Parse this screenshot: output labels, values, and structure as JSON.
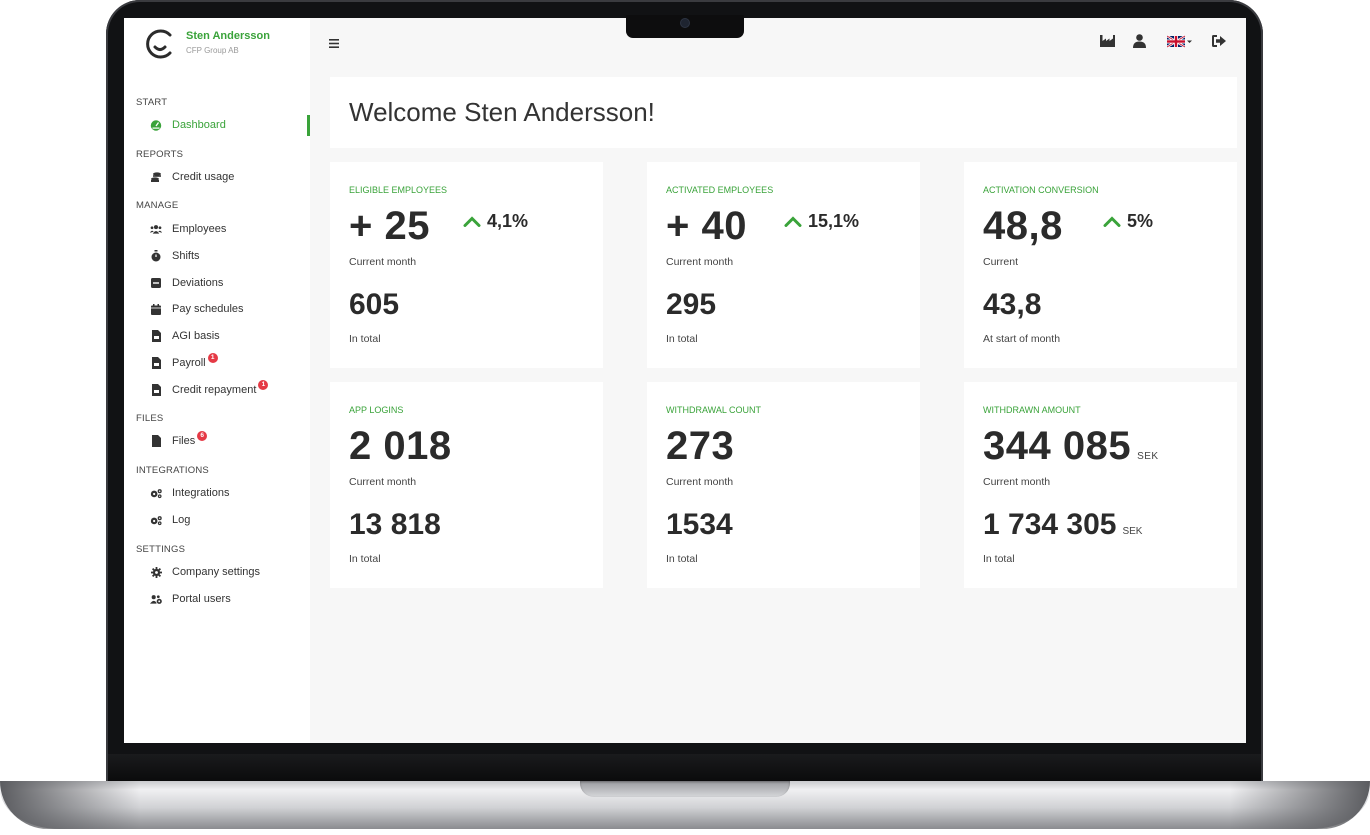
{
  "brand": {
    "name": "Sten Andersson",
    "company": "CFP Group AB",
    "accent": "#3aa33a"
  },
  "sidebar": {
    "sections": {
      "start": "START",
      "reports": "REPORTS",
      "manage": "MANAGE",
      "files": "FILES",
      "integrations": "INTEGRATIONS",
      "settings": "SETTINGS"
    },
    "items": {
      "dashboard": {
        "label": "Dashboard",
        "icon": "dashboard-icon"
      },
      "credit_usage": {
        "label": "Credit usage",
        "icon": "coins-icon"
      },
      "employees": {
        "label": "Employees",
        "icon": "users-icon"
      },
      "shifts": {
        "label": "Shifts",
        "icon": "stopwatch-icon"
      },
      "deviations": {
        "label": "Deviations",
        "icon": "minus-square-icon"
      },
      "pay_schedules": {
        "label": "Pay schedules",
        "icon": "calendar-icon"
      },
      "agi_basis": {
        "label": "AGI basis",
        "icon": "file-invoice-icon"
      },
      "payroll": {
        "label": "Payroll",
        "icon": "file-invoice-icon",
        "badge": "1"
      },
      "credit_repayment": {
        "label": "Credit repayment",
        "icon": "file-invoice-icon",
        "badge": "1"
      },
      "files": {
        "label": "Files",
        "icon": "file-icon",
        "badge": "6"
      },
      "integrations": {
        "label": "Integrations",
        "icon": "cogs-icon"
      },
      "log": {
        "label": "Log",
        "icon": "cogs-icon"
      },
      "company_settings": {
        "label": "Company settings",
        "icon": "gear-icon"
      },
      "portal_users": {
        "label": "Portal users",
        "icon": "users-cog-icon"
      }
    }
  },
  "topbar": {
    "icons": [
      "menu-icon",
      "industry-icon",
      "user-icon",
      "uk-flag-icon",
      "logout-icon"
    ]
  },
  "welcome": {
    "title": "Welcome Sten Andersson!"
  },
  "cards": {
    "eligible": {
      "label": "ELIGIBLE EMPLOYEES",
      "value": "+ 25",
      "trend": "4,1%",
      "sub1": "Current month",
      "total": "605",
      "sub2": "In total"
    },
    "activated": {
      "label": "ACTIVATED EMPLOYEES",
      "value": "+ 40",
      "trend": "15,1%",
      "sub1": "Current month",
      "total": "295",
      "sub2": "In total"
    },
    "conversion": {
      "label": "ACTIVATION CONVERSION",
      "value": "48,8",
      "trend": "5%",
      "sub1": "Current",
      "total": "43,8",
      "sub2": "At start of month"
    },
    "logins": {
      "label": "APP LOGINS",
      "value": "2 018",
      "sub1": "Current month",
      "total": "13 818",
      "sub2": "In total"
    },
    "withdrawals": {
      "label": "WITHDRAWAL COUNT",
      "value": "273",
      "sub1": "Current month",
      "total": "1534",
      "sub2": "In total"
    },
    "amount": {
      "label": "WITHDRAWN AMOUNT",
      "value": "344 085",
      "unit": "SEK",
      "sub1": "Current month",
      "total": "1 734 305",
      "total_unit": "SEK",
      "sub2": "In total"
    }
  }
}
